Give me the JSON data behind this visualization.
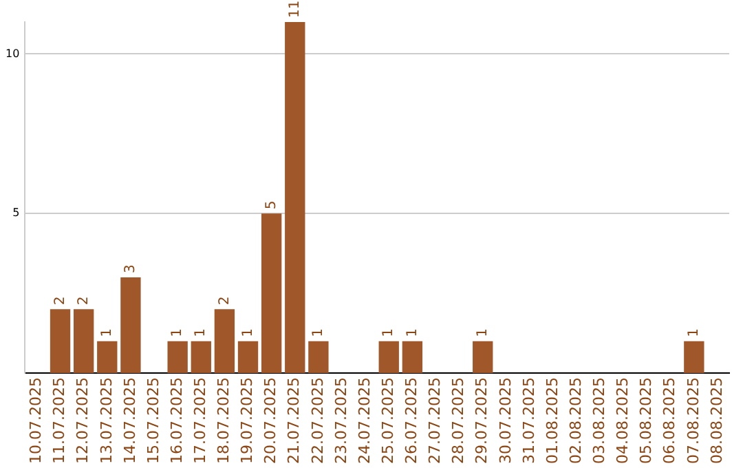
{
  "chart_data": {
    "type": "bar",
    "categories": [
      "10.07.2025",
      "11.07.2025",
      "12.07.2025",
      "13.07.2025",
      "14.07.2025",
      "15.07.2025",
      "16.07.2025",
      "17.07.2025",
      "18.07.2025",
      "19.07.2025",
      "20.07.2025",
      "21.07.2025",
      "22.07.2025",
      "23.07.2025",
      "24.07.2025",
      "25.07.2025",
      "26.07.2025",
      "27.07.2025",
      "28.07.2025",
      "29.07.2025",
      "30.07.2025",
      "31.07.2025",
      "01.08.2025",
      "02.08.2025",
      "03.08.2025",
      "04.08.2025",
      "05.08.2025",
      "06.08.2025",
      "07.08.2025",
      "08.08.2025"
    ],
    "values": [
      0,
      2,
      2,
      1,
      3,
      0,
      1,
      1,
      2,
      1,
      5,
      11,
      1,
      0,
      0,
      1,
      1,
      0,
      0,
      1,
      0,
      0,
      0,
      0,
      0,
      0,
      0,
      0,
      1,
      0
    ],
    "value_labels": [
      null,
      "2",
      "2",
      "1",
      "3",
      null,
      "1",
      "1",
      "2",
      "1",
      "5",
      "11",
      "1",
      null,
      null,
      "1",
      "1",
      null,
      null,
      "1",
      null,
      null,
      null,
      null,
      null,
      null,
      null,
      null,
      "1",
      null
    ],
    "color": "#a0582a",
    "ylim": [
      0,
      11
    ],
    "yticks": [
      5,
      10
    ],
    "grid": "y",
    "legend": false
  }
}
